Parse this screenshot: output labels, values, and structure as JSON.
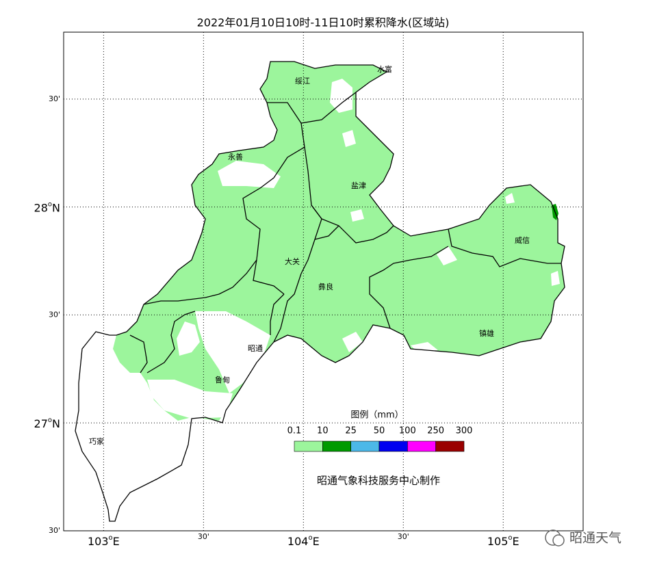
{
  "title": "2022年01月10日10时-11日10时累积降水(区域站)",
  "map": {
    "lon_range": [
      102.8,
      105.4
    ],
    "lat_range": [
      26.5,
      28.81
    ],
    "lon_ticks": [
      {
        "value": 103,
        "label": "103",
        "unit": "o",
        "hemisphere": "E"
      },
      {
        "value": 103.5,
        "label": "30'"
      },
      {
        "value": 104,
        "label": "104",
        "unit": "o",
        "hemisphere": "E"
      },
      {
        "value": 104.5,
        "label": "30'"
      },
      {
        "value": 105,
        "label": "105",
        "unit": "o",
        "hemisphere": "E"
      }
    ],
    "lat_ticks": [
      {
        "value": 28.5,
        "label": "30'"
      },
      {
        "value": 28,
        "label": "28",
        "unit": "o",
        "hemisphere": "N"
      },
      {
        "value": 27.5,
        "label": "30'"
      },
      {
        "value": 27,
        "label": "27",
        "unit": "o",
        "hemisphere": "N"
      },
      {
        "value": 26.5,
        "label": "30'"
      }
    ],
    "counties": [
      "绥江",
      "水富",
      "永善",
      "盐津",
      "威信",
      "大关",
      "彝良",
      "镇雄",
      "昭通",
      "鲁甸",
      "巧家"
    ]
  },
  "legend": {
    "title": "图例（mm）",
    "bins": [
      0.1,
      10,
      25,
      50,
      100,
      250,
      300
    ],
    "colors": [
      "#9cf59c",
      "#009a00",
      "#4cb8e8",
      "#0000f0",
      "#ff00ff",
      "#9a0000"
    ]
  },
  "credit": "昭通气象科技服务中心制作",
  "watermark": "昭通天气"
}
